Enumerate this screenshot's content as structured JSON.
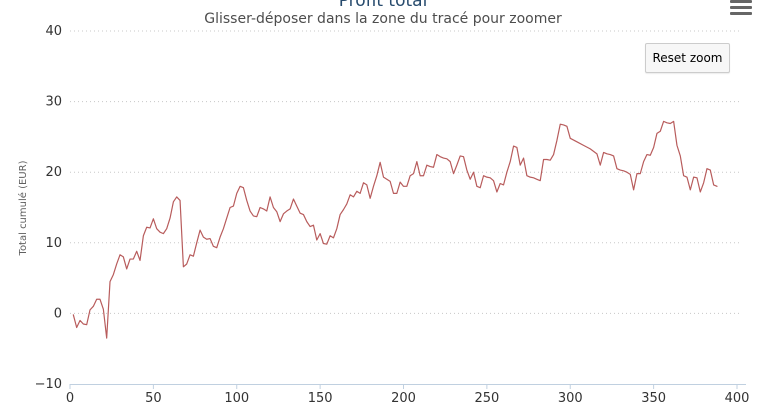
{
  "chart_data": {
    "type": "line",
    "title": "Profit total",
    "subtitle": "Glisser-déposer dans la zone du tracé pour zoomer",
    "ylabel": "Total cumulé (EUR)",
    "xlabel": "",
    "xlim": [
      0,
      403
    ],
    "ylim": [
      -10,
      40
    ],
    "x_ticks": [
      0,
      50,
      100,
      150,
      200,
      250,
      300,
      350,
      400
    ],
    "y_ticks": [
      -10,
      0,
      10,
      20,
      30,
      40
    ],
    "grid": true,
    "series": [
      {
        "color": "#b85c5c",
        "points": [
          [
            2,
            -0.2
          ],
          [
            4,
            -2
          ],
          [
            6,
            -1
          ],
          [
            8,
            -1.5
          ],
          [
            10,
            -1.6
          ],
          [
            12,
            0.5
          ],
          [
            14,
            1
          ],
          [
            16,
            2
          ],
          [
            18,
            2
          ],
          [
            20,
            0.6
          ],
          [
            22,
            -3.5
          ],
          [
            24,
            4.5
          ],
          [
            26,
            5.5
          ],
          [
            28,
            7
          ],
          [
            30,
            8.3
          ],
          [
            32,
            8
          ],
          [
            34,
            6.3
          ],
          [
            36,
            7.7
          ],
          [
            38,
            7.7
          ],
          [
            40,
            8.8
          ],
          [
            42,
            7.5
          ],
          [
            44,
            11
          ],
          [
            46,
            12.2
          ],
          [
            48,
            12.1
          ],
          [
            50,
            13.4
          ],
          [
            52,
            12
          ],
          [
            54,
            11.5
          ],
          [
            56,
            11.3
          ],
          [
            58,
            12
          ],
          [
            60,
            13.5
          ],
          [
            62,
            15.8
          ],
          [
            64,
            16.5
          ],
          [
            66,
            16
          ],
          [
            68,
            6.6
          ],
          [
            70,
            7
          ],
          [
            72,
            8.3
          ],
          [
            74,
            8.1
          ],
          [
            76,
            10
          ],
          [
            78,
            11.8
          ],
          [
            80,
            10.8
          ],
          [
            82,
            10.5
          ],
          [
            84,
            10.6
          ],
          [
            86,
            9.5
          ],
          [
            88,
            9.3
          ],
          [
            90,
            10.8
          ],
          [
            92,
            12
          ],
          [
            94,
            13.5
          ],
          [
            96,
            15
          ],
          [
            98,
            15.2
          ],
          [
            100,
            17
          ],
          [
            102,
            18
          ],
          [
            104,
            17.8
          ],
          [
            106,
            16
          ],
          [
            108,
            14.5
          ],
          [
            110,
            13.8
          ],
          [
            112,
            13.7
          ],
          [
            114,
            15
          ],
          [
            116,
            14.8
          ],
          [
            118,
            14.5
          ],
          [
            120,
            16.5
          ],
          [
            122,
            15
          ],
          [
            124,
            14.4
          ],
          [
            126,
            13
          ],
          [
            128,
            14.1
          ],
          [
            130,
            14.5
          ],
          [
            132,
            14.8
          ],
          [
            134,
            16.2
          ],
          [
            136,
            15.2
          ],
          [
            138,
            14.2
          ],
          [
            140,
            14
          ],
          [
            142,
            13
          ],
          [
            144,
            12.3
          ],
          [
            146,
            12.5
          ],
          [
            148,
            10.4
          ],
          [
            150,
            11.3
          ],
          [
            152,
            9.9
          ],
          [
            154,
            9.8
          ],
          [
            156,
            11
          ],
          [
            158,
            10.7
          ],
          [
            160,
            12
          ],
          [
            162,
            14
          ],
          [
            164,
            14.7
          ],
          [
            166,
            15.5
          ],
          [
            168,
            16.8
          ],
          [
            170,
            16.5
          ],
          [
            172,
            17.3
          ],
          [
            174,
            17
          ],
          [
            176,
            18.5
          ],
          [
            178,
            18.2
          ],
          [
            180,
            16.3
          ],
          [
            182,
            18
          ],
          [
            184,
            19.5
          ],
          [
            186,
            21.4
          ],
          [
            188,
            19.3
          ],
          [
            190,
            19
          ],
          [
            192,
            18.7
          ],
          [
            194,
            17
          ],
          [
            196,
            17
          ],
          [
            198,
            18.6
          ],
          [
            200,
            18
          ],
          [
            202,
            18
          ],
          [
            204,
            19.5
          ],
          [
            206,
            19.8
          ],
          [
            208,
            21.5
          ],
          [
            210,
            19.5
          ],
          [
            212,
            19.5
          ],
          [
            214,
            21
          ],
          [
            216,
            20.8
          ],
          [
            218,
            20.7
          ],
          [
            220,
            22.5
          ],
          [
            222,
            22.2
          ],
          [
            224,
            22
          ],
          [
            226,
            21.9
          ],
          [
            228,
            21.5
          ],
          [
            230,
            19.8
          ],
          [
            232,
            21
          ],
          [
            234,
            22.3
          ],
          [
            236,
            22.2
          ],
          [
            238,
            20.3
          ],
          [
            240,
            19
          ],
          [
            242,
            20
          ],
          [
            244,
            18
          ],
          [
            246,
            17.8
          ],
          [
            248,
            19.5
          ],
          [
            250,
            19.3
          ],
          [
            252,
            19.2
          ],
          [
            254,
            18.8
          ],
          [
            256,
            17.2
          ],
          [
            258,
            18.4
          ],
          [
            260,
            18.2
          ],
          [
            262,
            20
          ],
          [
            264,
            21.5
          ],
          [
            266,
            23.7
          ],
          [
            268,
            23.5
          ],
          [
            270,
            21
          ],
          [
            272,
            22
          ],
          [
            274,
            19.5
          ],
          [
            276,
            19.3
          ],
          [
            278,
            19.2
          ],
          [
            280,
            19
          ],
          [
            282,
            18.8
          ],
          [
            284,
            21.8
          ],
          [
            286,
            21.8
          ],
          [
            288,
            21.7
          ],
          [
            290,
            22.5
          ],
          [
            292,
            24.5
          ],
          [
            294,
            26.8
          ],
          [
            296,
            26.7
          ],
          [
            298,
            26.5
          ],
          [
            300,
            24.8
          ],
          [
            304,
            24.3
          ],
          [
            308,
            23.8
          ],
          [
            312,
            23.3
          ],
          [
            316,
            22.6
          ],
          [
            318,
            21
          ],
          [
            320,
            22.8
          ],
          [
            322,
            22.6
          ],
          [
            324,
            22.5
          ],
          [
            326,
            22.3
          ],
          [
            328,
            20.5
          ],
          [
            330,
            20.3
          ],
          [
            332,
            20.2
          ],
          [
            334,
            20
          ],
          [
            336,
            19.7
          ],
          [
            338,
            17.5
          ],
          [
            340,
            19.8
          ],
          [
            342,
            19.8
          ],
          [
            344,
            21.5
          ],
          [
            346,
            22.5
          ],
          [
            348,
            22.4
          ],
          [
            350,
            23.5
          ],
          [
            352,
            25.5
          ],
          [
            354,
            25.8
          ],
          [
            356,
            27.2
          ],
          [
            358,
            27
          ],
          [
            360,
            26.9
          ],
          [
            362,
            27.2
          ],
          [
            364,
            23.8
          ],
          [
            366,
            22.3
          ],
          [
            368,
            19.5
          ],
          [
            370,
            19.3
          ],
          [
            372,
            17.5
          ],
          [
            374,
            19.3
          ],
          [
            376,
            19.2
          ],
          [
            378,
            17.2
          ],
          [
            380,
            18.5
          ],
          [
            382,
            20.5
          ],
          [
            384,
            20.3
          ],
          [
            386,
            18.2
          ],
          [
            388,
            18
          ]
        ]
      }
    ]
  },
  "controls": {
    "reset_zoom_label": "Reset zoom",
    "menu_icon": "hamburger-menu-icon"
  },
  "style": {
    "line_color": "#b85c5c",
    "grid_color": "#c8c8c8",
    "axis_color": "#c0d0e0",
    "label_color": "#606060"
  }
}
